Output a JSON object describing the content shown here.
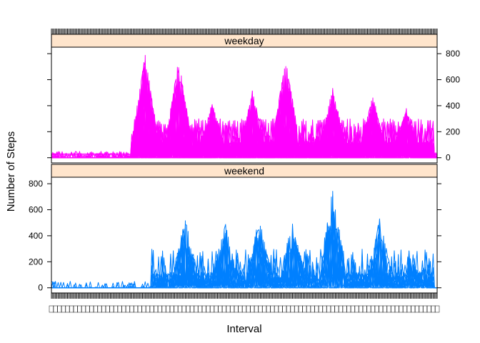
{
  "chart_data": {
    "type": "line",
    "layout": "lattice-2-panels-stacked",
    "xlabel": "Interval",
    "ylabel": "Number of Steps",
    "x_tick_labels_note": "dense overlapping interval tick labels",
    "strip_color": "#ffe5cc",
    "panels": [
      {
        "name": "weekday",
        "color": "#ff00ff",
        "y_axis_side": "right",
        "y_ticks": [
          0,
          200,
          400,
          600,
          800
        ],
        "ylim": [
          -40,
          850
        ],
        "xlim": [
          0,
          288
        ],
        "active_range": [
          60,
          285
        ],
        "burst_centers": [
          [
            70,
            800
          ],
          [
            95,
            760
          ],
          [
            120,
            420
          ],
          [
            150,
            520
          ],
          [
            175,
            780
          ],
          [
            210,
            540
          ],
          [
            240,
            480
          ],
          [
            265,
            380
          ]
        ]
      },
      {
        "name": "weekend",
        "color": "#0080ff",
        "y_axis_side": "left",
        "y_ticks": [
          0,
          200,
          400,
          600,
          800
        ],
        "ylim": [
          -40,
          850
        ],
        "xlim": [
          0,
          288
        ],
        "active_range": [
          75,
          285
        ],
        "burst_centers": [
          [
            100,
            540
          ],
          [
            130,
            500
          ],
          [
            155,
            540
          ],
          [
            180,
            520
          ],
          [
            210,
            780
          ],
          [
            245,
            540
          ],
          [
            270,
            180
          ]
        ]
      }
    ]
  }
}
